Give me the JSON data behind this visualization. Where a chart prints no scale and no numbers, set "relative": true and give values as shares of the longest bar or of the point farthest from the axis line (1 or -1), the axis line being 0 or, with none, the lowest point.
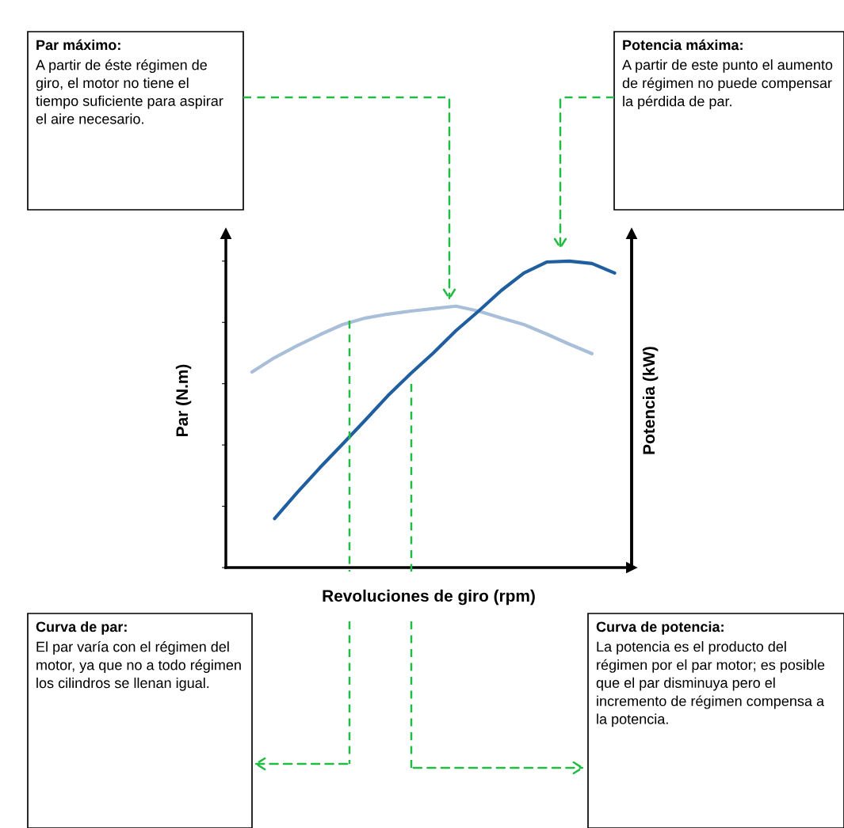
{
  "chart_data": {
    "type": "line",
    "relative": true,
    "categories": [
      null,
      null,
      null,
      null,
      null,
      null,
      null,
      null,
      null,
      null,
      null,
      null,
      null,
      null,
      null,
      null,
      null
    ],
    "series": [
      {
        "color": "#a9bfd9",
        "values": [
          0.638,
          0.685,
          0.724,
          0.76,
          0.793,
          0.814,
          0.827,
          0.837,
          0.845,
          0.853,
          0.837,
          0.814,
          0.793,
          0.762,
          0.729,
          0.698,
          null
        ]
      },
      {
        "color": "#1f5fa0",
        "values": [
          null,
          0.16,
          0.245,
          0.326,
          0.403,
          0.481,
          0.561,
          0.633,
          0.7,
          0.773,
          0.837,
          0.904,
          0.961,
          0.997,
          1.0,
          0.992,
          0.961
        ]
      }
    ],
    "xlabel": "Revoluciones de giro (rpm)",
    "ylabel": "Par (N.m)",
    "y2label": "Potencia (kW)",
    "tick_labels": false,
    "annotations": [
      "Par máximo: A partir de éste régimen de giro, el motor no tiene el tiempo suficiente para aspirar el aire necesario.",
      "Potencia máxima: A partir de este punto el aumento de régimen no puede compensar la pérdida de par.",
      "Curva de par: El par varía con el régimen del motor, ya que no a todo régimen los cilindros se llenan igual.",
      "Curva de potencia: La potencia es el producto del régimen por el par motor; es posible que el par disminuya pero el incremento de régimen compensa a la potencia."
    ]
  }
}
